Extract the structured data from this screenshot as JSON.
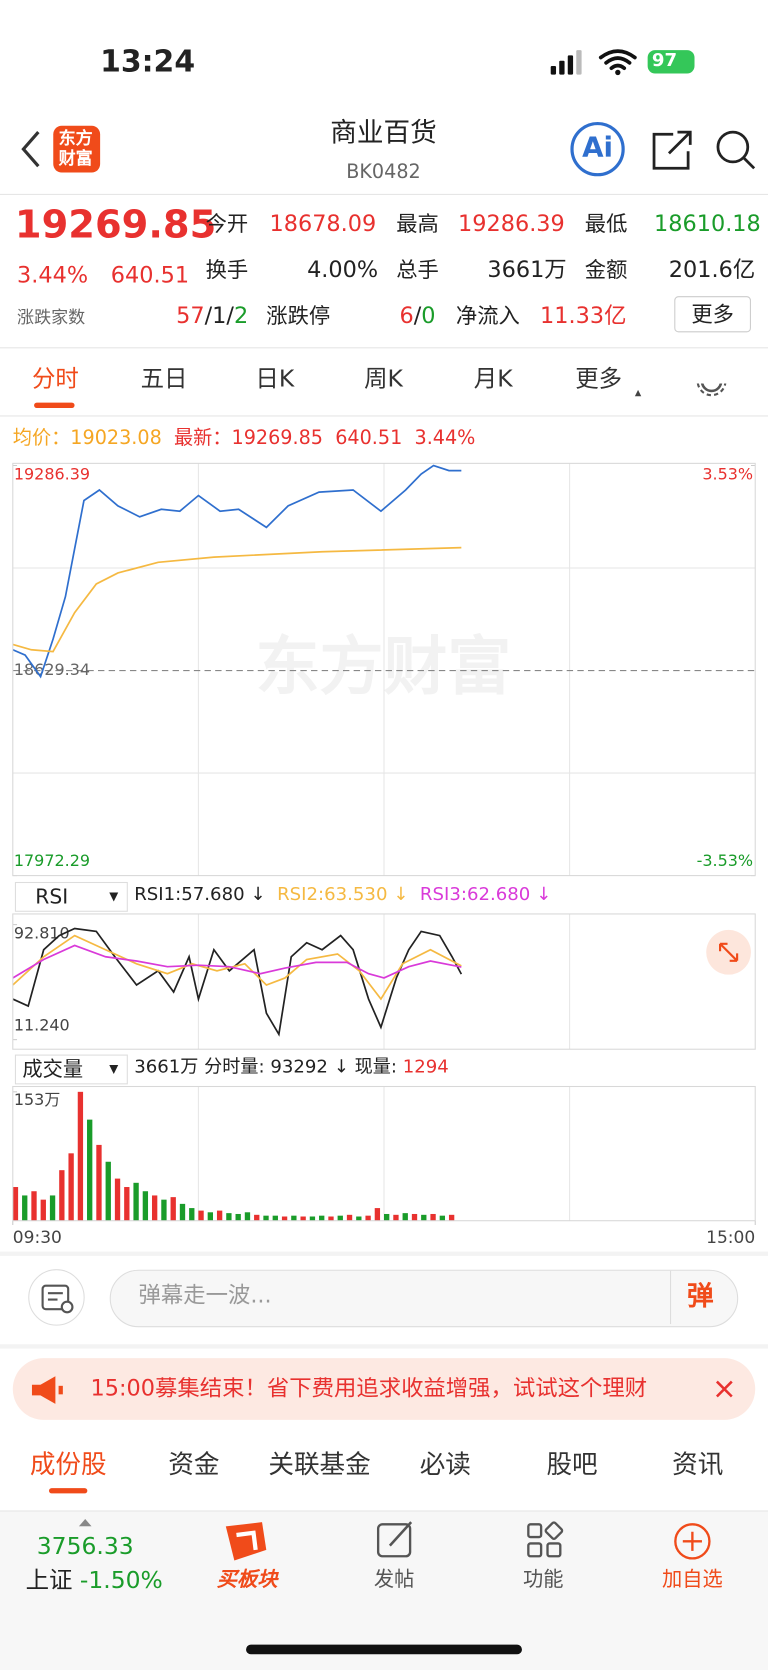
{
  "status": {
    "time": "13:24",
    "battery": "97"
  },
  "header": {
    "logo": [
      "东方",
      "财富"
    ],
    "title": "商业百货",
    "code": "BK0482",
    "ai": "Ai"
  },
  "quote": {
    "price": "19269.85",
    "change_pct": "3.44%",
    "change": "640.51",
    "fields": [
      {
        "label": "今开",
        "value": "18678.09",
        "color": "#e8312f"
      },
      {
        "label": "最高",
        "value": "19286.39",
        "color": "#e8312f"
      },
      {
        "label": "最低",
        "value": "18610.18",
        "color": "#1a9c2a"
      },
      {
        "label": "换手",
        "value": "4.00%",
        "color": "#222222"
      },
      {
        "label": "总手",
        "value": "3661万",
        "color": "#222222"
      },
      {
        "label": "金额",
        "value": "201.6亿",
        "color": "#222222"
      }
    ],
    "breadth_label": "涨跌家数",
    "breadth": [
      "57",
      "/",
      "1",
      "/",
      "2"
    ],
    "limit_label": "涨跌停",
    "limit": [
      "6",
      "/",
      "0"
    ],
    "inflow_label": "净流入",
    "inflow": "11.33亿",
    "more": "更多"
  },
  "tabs": [
    "分时",
    "五日",
    "日K",
    "周K",
    "月K",
    "更多"
  ],
  "legend": {
    "avg_label": "均价：",
    "avg": "19023.08",
    "last_label": "最新：",
    "last": "19269.85",
    "change": "640.51",
    "pct": "3.44%"
  },
  "watermark": "东方财富",
  "chart_data": [
    {
      "type": "line",
      "xlim": [
        0,
        240
      ],
      "ylim": [
        17972.29,
        19286.39
      ],
      "yticks": [
        19286.39,
        18629.34,
        17972.29
      ],
      "ytick_colors": [
        "#e8312f",
        "#666666",
        "#1a9c2a"
      ],
      "y2lim": [
        -3.53,
        3.53
      ],
      "y2ticks": [
        {
          "value": 3.53,
          "label": "3.53%"
        },
        {
          "value": -3.53,
          "label": "-3.53%"
        }
      ],
      "y2tick_colors": [
        "#e8312f",
        "#1a9c2a"
      ],
      "series": [
        {
          "color": "#2f6fce",
          "x": [
            0,
            4,
            9,
            13,
            17,
            20,
            23,
            28,
            34,
            41,
            48,
            54,
            60,
            67,
            73,
            82,
            89,
            99,
            110,
            119,
            127,
            132,
            136,
            141,
            145
          ],
          "values": [
            18696,
            18679,
            18610,
            18730,
            18866,
            19020,
            19174,
            19208,
            19157,
            19122,
            19146,
            19140,
            19190,
            19140,
            19146,
            19088,
            19157,
            19201,
            19208,
            19140,
            19208,
            19259,
            19286,
            19270,
            19269.85
          ]
        },
        {
          "color": "#f5b942",
          "x": [
            0,
            6,
            13,
            20,
            27,
            34,
            47,
            65,
            100,
            145
          ],
          "values": [
            18713,
            18696,
            18690,
            18815,
            18907,
            18942,
            18976,
            18993,
            19010,
            19023.08
          ]
        }
      ]
    },
    {
      "type": "line",
      "xlim": [
        0,
        240
      ],
      "ylim": [
        11.24,
        92.81
      ],
      "yticks": [
        {
          "value": 92.81,
          "label": "92.810"
        },
        {
          "value": 11.24,
          "label": "11.240"
        }
      ],
      "series": [
        {
          "color": "#222222",
          "x": [
            0,
            5,
            10,
            15,
            20,
            27,
            33,
            40,
            47,
            52,
            57,
            60,
            65,
            70,
            78,
            82,
            86,
            90,
            95,
            100,
            106,
            110,
            115,
            119,
            124,
            128,
            132,
            138,
            142,
            145
          ],
          "values": [
            40,
            35,
            75,
            85,
            90,
            88,
            70,
            50,
            60,
            45,
            70,
            40,
            75,
            60,
            75,
            30,
            15,
            70,
            80,
            75,
            85,
            75,
            40,
            20,
            55,
            75,
            88,
            85,
            70,
            57.68
          ]
        },
        {
          "color": "#f5b942",
          "x": [
            0,
            10,
            20,
            30,
            40,
            50,
            58,
            66,
            75,
            82,
            88,
            95,
            105,
            112,
            119,
            126,
            135,
            145
          ],
          "values": [
            50,
            70,
            85,
            75,
            65,
            58,
            65,
            60,
            65,
            50,
            55,
            68,
            72,
            60,
            40,
            65,
            75,
            63.53
          ]
        },
        {
          "color": "#d93ad9",
          "x": [
            0,
            10,
            20,
            30,
            40,
            50,
            60,
            70,
            80,
            88,
            98,
            108,
            115,
            120,
            128,
            135,
            145
          ],
          "values": [
            55,
            68,
            78,
            70,
            67,
            63,
            64,
            63,
            58,
            62,
            66,
            66,
            58,
            55,
            63,
            67,
            62.68
          ]
        }
      ]
    },
    {
      "type": "bar",
      "xlim": [
        0,
        240
      ],
      "ylim": [
        0,
        153
      ],
      "yticks": [
        {
          "value": 153,
          "label": "153万"
        }
      ],
      "xticks": [
        {
          "value": 0,
          "label": "09:30"
        },
        {
          "value": 240,
          "label": "15:00"
        }
      ],
      "x": [
        0,
        3,
        6,
        9,
        12,
        15,
        18,
        21,
        24,
        27,
        30,
        33,
        36,
        39,
        42,
        45,
        48,
        51,
        54,
        57,
        60,
        63,
        66,
        69,
        72,
        75,
        78,
        81,
        84,
        87,
        90,
        93,
        96,
        99,
        102,
        105,
        108,
        111,
        114,
        117,
        120,
        123,
        126,
        129,
        132,
        135,
        138,
        141
      ],
      "values": [
        40,
        30,
        35,
        25,
        30,
        60,
        80,
        153,
        120,
        90,
        70,
        50,
        40,
        45,
        35,
        30,
        25,
        28,
        20,
        15,
        12,
        10,
        12,
        9,
        8,
        10,
        7,
        6,
        6,
        5,
        6,
        5,
        5,
        6,
        5,
        6,
        7,
        5,
        6,
        15,
        8,
        7,
        9,
        8,
        7,
        8,
        6,
        7
      ],
      "colors": [
        "#e8312f",
        "#1a9c2a",
        "#e8312f",
        "#e8312f",
        "#1a9c2a",
        "#e8312f",
        "#e8312f",
        "#e8312f",
        "#1a9c2a",
        "#e8312f",
        "#1a9c2a",
        "#e8312f",
        "#e8312f",
        "#1a9c2a",
        "#1a9c2a",
        "#e8312f",
        "#1a9c2a",
        "#e8312f",
        "#1a9c2a",
        "#1a9c2a",
        "#e8312f",
        "#1a9c2a",
        "#e8312f",
        "#1a9c2a",
        "#1a9c2a",
        "#1a9c2a",
        "#e8312f",
        "#1a9c2a",
        "#1a9c2a",
        "#e8312f",
        "#1a9c2a",
        "#e8312f",
        "#1a9c2a",
        "#1a9c2a",
        "#e8312f",
        "#1a9c2a",
        "#e8312f",
        "#1a9c2a",
        "#e8312f",
        "#e8312f",
        "#1a9c2a",
        "#e8312f",
        "#1a9c2a",
        "#e8312f",
        "#1a9c2a",
        "#e8312f",
        "#1a9c2a",
        "#e8312f"
      ]
    }
  ],
  "rsi_legend": {
    "selector": "RSI",
    "items": [
      "RSI1:57.680 ↓",
      "RSI2:63.530 ↓",
      "RSI3:62.680 ↓"
    ]
  },
  "volume_legend": {
    "selector": "成交量",
    "total": "3661万",
    "minute": "分时量: 93292 ↓",
    "now_label": "现量:",
    "now": "1294"
  },
  "comment": {
    "placeholder": "弹幕走一波...",
    "button": "弹"
  },
  "banner": "15:00募集结束！省下费用追求收益增强，试试这个理财",
  "bottom_tabs": [
    "成份股",
    "资金",
    "关联基金",
    "必读",
    "股吧",
    "资讯"
  ],
  "nav": {
    "index_value": "3756.33",
    "index_name": "上证",
    "index_change": "-1.50%",
    "items": [
      "买板块",
      "发帖",
      "功能",
      "加自选"
    ]
  }
}
